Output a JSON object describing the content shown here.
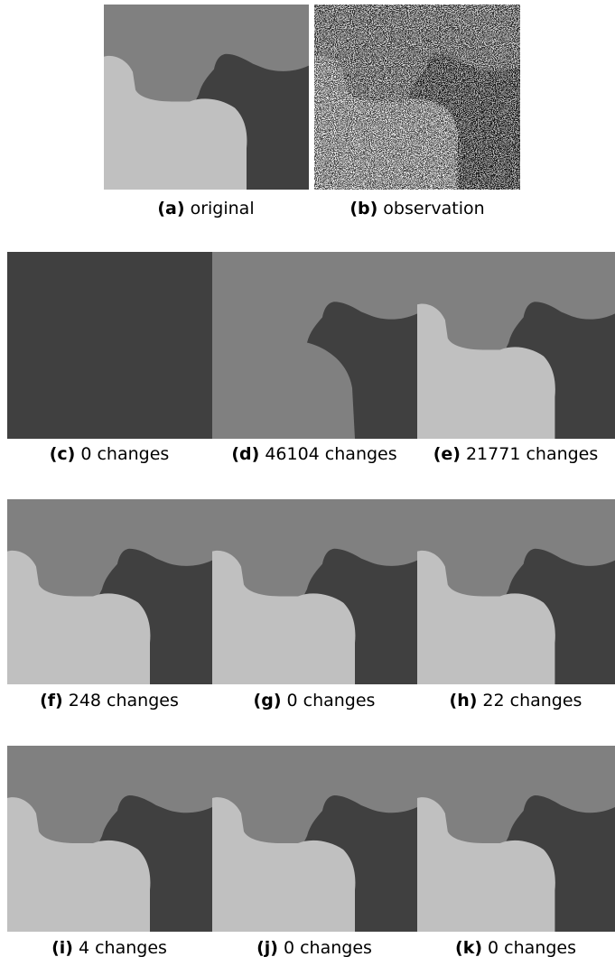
{
  "panels": [
    {
      "label": "(a)",
      "caption": "original"
    },
    {
      "label": "(b)",
      "caption": "observation"
    },
    {
      "label": "(c)",
      "caption": "0 changes"
    },
    {
      "label": "(d)",
      "caption": "46104 changes"
    },
    {
      "label": "(e)",
      "caption": "21771 changes"
    },
    {
      "label": "(f)",
      "caption": "248 changes"
    },
    {
      "label": "(g)",
      "caption": "0 changes"
    },
    {
      "label": "(h)",
      "caption": "22 changes"
    },
    {
      "label": "(i)",
      "caption": "4 changes"
    },
    {
      "label": "(j)",
      "caption": "0 changes"
    },
    {
      "label": "(k)",
      "caption": "0 changes"
    }
  ]
}
